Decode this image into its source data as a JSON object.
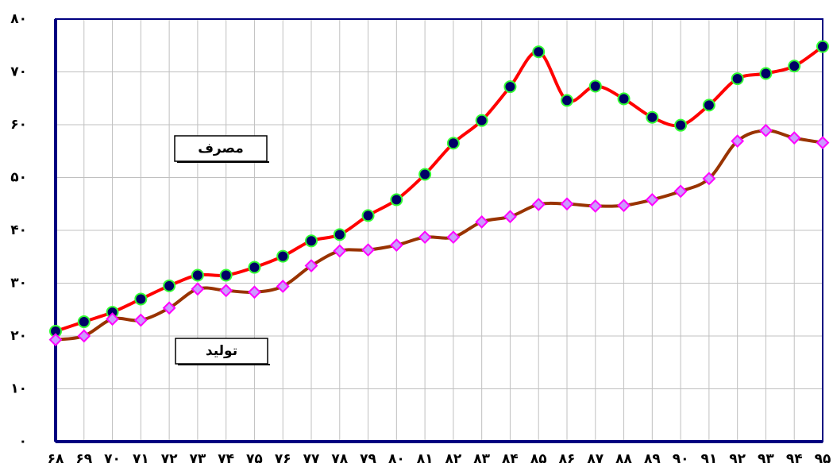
{
  "chart_data": {
    "type": "line",
    "categories": [
      "۶۸",
      "۶۹",
      "۷۰",
      "۷۱",
      "۷۲",
      "۷۳",
      "۷۴",
      "۷۵",
      "۷۶",
      "۷۷",
      "۷۸",
      "۷۹",
      "۸۰",
      "۸۱",
      "۸۲",
      "۸۳",
      "۸۴",
      "۸۵",
      "۸۶",
      "۸۷",
      "۸۸",
      "۸۹",
      "۹۰",
      "۹۱",
      "۹۲",
      "۹۳",
      "۹۴",
      "۹۵"
    ],
    "series": [
      {
        "name": "مصرف",
        "color": "#ff0000",
        "marker": "circle",
        "marker_fill": "#000066",
        "marker_stroke": "#33ff33",
        "values": [
          20.9,
          22.7,
          24.5,
          27,
          29.5,
          31.5,
          31.5,
          33,
          35.1,
          38,
          39.2,
          42.8,
          45.8,
          50.6,
          56.5,
          60.8,
          67.2,
          73.8,
          64.6,
          67.3,
          64.9,
          61.4,
          59.9,
          63.7,
          68.7,
          69.7,
          71.1,
          74.8
        ]
      },
      {
        "name": "تولید",
        "color": "#993300",
        "marker": "diamond",
        "marker_fill": "#cc99ff",
        "marker_stroke": "#ff00ff",
        "values": [
          19.3,
          20,
          23.2,
          23,
          25.3,
          28.9,
          28.6,
          28.3,
          29.4,
          33.3,
          36.1,
          36.3,
          37.2,
          38.7,
          38.7,
          41.6,
          42.6,
          44.9,
          45,
          44.6,
          44.7,
          45.8,
          47.4,
          49.8,
          56.9,
          58.9,
          57.5,
          56.6
        ]
      }
    ],
    "ylim": [
      0,
      80
    ],
    "yticks": [
      {
        "value": 0,
        "label": "۰"
      },
      {
        "value": 10,
        "label": "۱۰"
      },
      {
        "value": 20,
        "label": "۲۰"
      },
      {
        "value": 30,
        "label": "۳۰"
      },
      {
        "value": 40,
        "label": "۴۰"
      },
      {
        "value": 50,
        "label": "۵۰"
      },
      {
        "value": 60,
        "label": "۶۰"
      },
      {
        "value": 70,
        "label": "۷۰"
      },
      {
        "value": 80,
        "label": "۸۰"
      }
    ],
    "grid": true
  }
}
